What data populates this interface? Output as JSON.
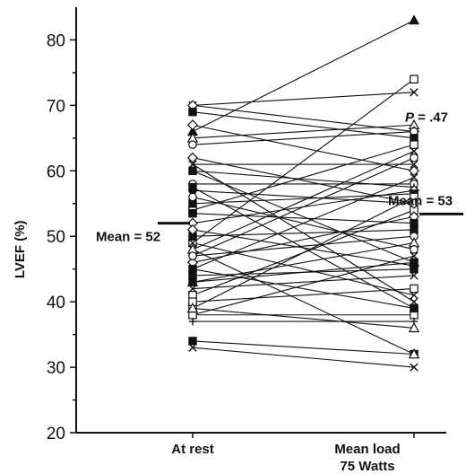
{
  "chart_data": {
    "type": "line",
    "ylabel": "LVEF (%)",
    "xlabel": "",
    "ylim": [
      20,
      85
    ],
    "yticks": [
      20,
      30,
      40,
      50,
      60,
      70,
      80
    ],
    "categories": [
      "At rest",
      "Mean load\n75 Watts"
    ],
    "category_lines": [
      [
        "At rest"
      ],
      [
        "Mean load",
        "75 Watts"
      ]
    ],
    "grid": false,
    "mean_annotations": [
      {
        "label": "Mean = 52",
        "value": 52,
        "category": "At rest"
      },
      {
        "label": "Mean = 53",
        "value": 53.4,
        "category": "Mean load\n75 Watts"
      }
    ],
    "stat_annotation": {
      "italic": "P",
      "rest": " = .47"
    },
    "pairs": [
      {
        "rest": 66,
        "load": 83,
        "marker": "triangle-filled"
      },
      {
        "rest": 49,
        "load": 74,
        "marker": "square-open"
      },
      {
        "rest": 70,
        "load": 72,
        "marker": "x"
      },
      {
        "rest": 65,
        "load": 67,
        "marker": "triangle-open"
      },
      {
        "rest": 70,
        "load": 66,
        "marker": "diamond-open"
      },
      {
        "rest": 64,
        "load": 66,
        "marker": "circle-open"
      },
      {
        "rest": 69,
        "load": 65,
        "marker": "square-filled"
      },
      {
        "rest": 54,
        "load": 64,
        "marker": "square-open"
      },
      {
        "rest": 48,
        "load": 63,
        "marker": "x"
      },
      {
        "rest": 61,
        "load": 61,
        "marker": "x"
      },
      {
        "rest": 67,
        "load": 60,
        "marker": "diamond-open"
      },
      {
        "rest": 45,
        "load": 59,
        "marker": "x"
      },
      {
        "rest": 58,
        "load": 58,
        "marker": "circle-open"
      },
      {
        "rest": 60,
        "load": 57.5,
        "marker": "plus"
      },
      {
        "rest": 52,
        "load": 57,
        "marker": "diamond-open"
      },
      {
        "rest": 55,
        "load": 56.5,
        "marker": "square-filled"
      },
      {
        "rest": 39,
        "load": 56,
        "marker": "square-open"
      },
      {
        "rest": 57,
        "load": 55,
        "marker": "circle-filled"
      },
      {
        "rest": 41,
        "load": 54,
        "marker": "square-open"
      },
      {
        "rest": 46,
        "load": 53,
        "marker": "diamond-open"
      },
      {
        "rest": 53.5,
        "load": 52,
        "marker": "square-filled"
      },
      {
        "rest": 50,
        "load": 51,
        "marker": "square-filled"
      },
      {
        "rest": 47,
        "load": 50,
        "marker": "circle-open"
      },
      {
        "rest": 43,
        "load": 49,
        "marker": "triangle-open"
      },
      {
        "rest": 56,
        "load": 48,
        "marker": "circle-open"
      },
      {
        "rest": 38,
        "load": 47,
        "marker": "x"
      },
      {
        "rest": 60,
        "load": 46,
        "marker": "square-filled"
      },
      {
        "rest": 51,
        "load": 45.5,
        "marker": "diamond-open"
      },
      {
        "rest": 44,
        "load": 45,
        "marker": "square-filled"
      },
      {
        "rest": 42,
        "load": 44,
        "marker": "x"
      },
      {
        "rest": 40,
        "load": 42,
        "marker": "square-open"
      },
      {
        "rest": 49,
        "load": 41,
        "marker": "x"
      },
      {
        "rest": 45,
        "load": 39,
        "marker": "square-filled"
      },
      {
        "rest": 38,
        "load": 38,
        "marker": "square-open"
      },
      {
        "rest": 37,
        "load": 37,
        "marker": "plus"
      },
      {
        "rest": 39,
        "load": 36,
        "marker": "triangle-open"
      },
      {
        "rest": 34,
        "load": 32,
        "marker": "square-filled"
      },
      {
        "rest": 33,
        "load": 30,
        "marker": "x"
      },
      {
        "rest": 61,
        "load": 40,
        "marker": "x"
      },
      {
        "rest": 57.5,
        "load": 39,
        "marker": "square-filled"
      },
      {
        "rest": 48,
        "load": 32,
        "marker": "triangle-open"
      },
      {
        "rest": 62,
        "load": 55,
        "marker": "diamond-open"
      },
      {
        "rest": 47,
        "load": 62,
        "marker": "circle-open"
      },
      {
        "rest": 43,
        "load": 46,
        "marker": "square-filled"
      }
    ]
  }
}
